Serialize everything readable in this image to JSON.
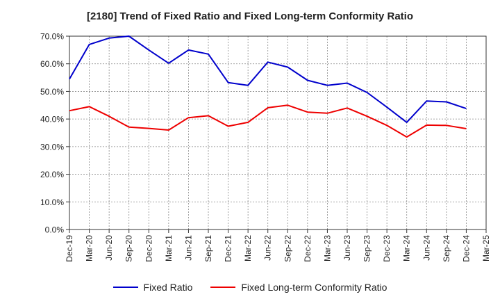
{
  "chart_data": {
    "type": "line",
    "title": "[2180]  Trend of Fixed Ratio and Fixed Long-term Conformity Ratio",
    "xlabel": "",
    "ylabel": "",
    "x": [
      "Dec-19",
      "Mar-20",
      "Jun-20",
      "Sep-20",
      "Dec-20",
      "Mar-21",
      "Jun-21",
      "Sep-21",
      "Dec-21",
      "Mar-22",
      "Jun-22",
      "Sep-22",
      "Dec-22",
      "Mar-23",
      "Jun-23",
      "Sep-23",
      "Dec-23",
      "Mar-24",
      "Jun-24",
      "Sep-24",
      "Dec-24",
      "Mar-25"
    ],
    "y_ticks": [
      "0.0%",
      "10.0%",
      "20.0%",
      "30.0%",
      "40.0%",
      "50.0%",
      "60.0%",
      "70.0%"
    ],
    "ylim": [
      0,
      70
    ],
    "grid": true,
    "legend_position": "bottom",
    "series": [
      {
        "name": "Fixed Ratio",
        "color": "#0000cc",
        "values": [
          54.5,
          67.0,
          69.3,
          70.0,
          65.0,
          60.2,
          65.0,
          63.5,
          53.2,
          52.2,
          60.6,
          58.8,
          54.0,
          52.2,
          53.0,
          49.6,
          44.3,
          38.8,
          46.5,
          46.2,
          43.8,
          null
        ]
      },
      {
        "name": "Fixed Long-term Conformity Ratio",
        "color": "#ee0000",
        "values": [
          43.0,
          44.5,
          41.0,
          37.1,
          36.6,
          36.0,
          40.5,
          41.2,
          37.4,
          38.8,
          44.1,
          45.0,
          42.5,
          42.1,
          44.0,
          41.0,
          37.7,
          33.5,
          37.8,
          37.7,
          36.5,
          null
        ]
      }
    ]
  }
}
